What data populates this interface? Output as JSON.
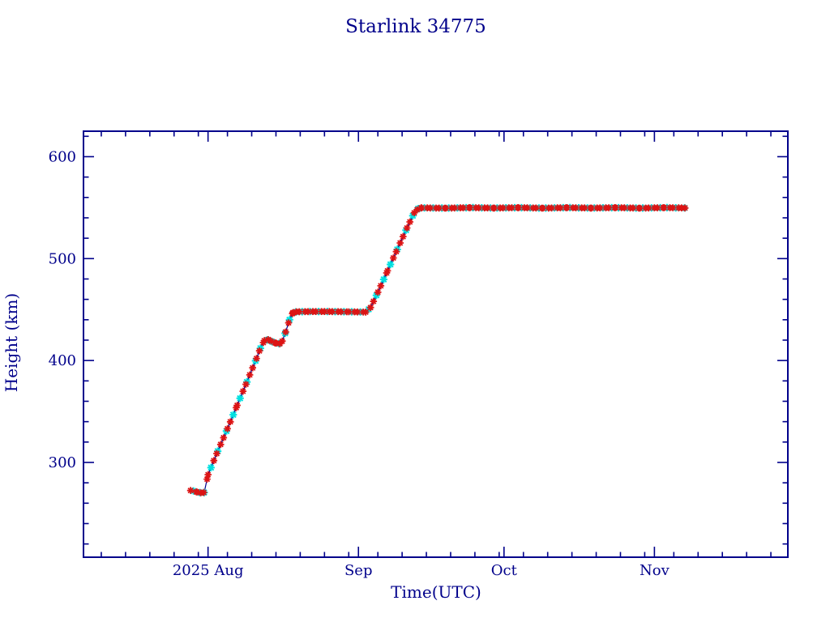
{
  "page": {
    "background": "#ffffff"
  },
  "chart_data": {
    "type": "line",
    "title": "Starlink 34775",
    "xlabel": "Time(UTC)",
    "ylabel": "Height (km)",
    "colors": {
      "axis": "#00008b",
      "text": "#00008b",
      "connector_line": "#00008b",
      "marker_primary": "#dc1414",
      "marker_secondary": "#00e0e0"
    },
    "legend": "none",
    "grid": "off",
    "x_axis": {
      "unit": "days since 2025-07-01",
      "range": [
        5.33,
        150.5
      ],
      "major_ticks": [
        {
          "label": "2025 Aug",
          "day": 31
        },
        {
          "label": "Sep",
          "day": 62
        },
        {
          "label": "Oct",
          "day": 92
        },
        {
          "label": "Nov",
          "day": 123
        }
      ],
      "minor_tick_days": [
        9,
        14,
        19,
        24,
        29,
        35,
        40,
        45,
        50,
        55,
        60,
        66,
        71,
        76,
        81,
        86,
        91,
        96,
        101,
        106,
        111,
        116,
        121,
        127,
        132,
        137,
        142,
        147
      ]
    },
    "y_axis": {
      "unit": "km",
      "range": [
        207,
        625
      ],
      "major_ticks": [
        300,
        400,
        500,
        600
      ],
      "minor_ticks": [
        220,
        240,
        260,
        280,
        320,
        340,
        360,
        380,
        420,
        440,
        460,
        480,
        520,
        540,
        560,
        580,
        620
      ]
    },
    "series": [
      {
        "name": "satellite-height",
        "marker": "asterisk",
        "points": [
          [
            27.4,
            272.5
          ],
          [
            28.0,
            272.0
          ],
          [
            28.7,
            271.0
          ],
          [
            29.5,
            270.2
          ],
          [
            30.2,
            270.5
          ],
          [
            31.0,
            288.0
          ],
          [
            33.0,
            311.0
          ],
          [
            35.0,
            333.0
          ],
          [
            37.0,
            356.0
          ],
          [
            39.0,
            379.0
          ],
          [
            41.0,
            402.0
          ],
          [
            41.8,
            412.0
          ],
          [
            42.6,
            419.5
          ],
          [
            43.4,
            420.5
          ],
          [
            44.2,
            418.5
          ],
          [
            45.0,
            417.0
          ],
          [
            45.8,
            416.5
          ],
          [
            46.3,
            419.0
          ],
          [
            47.0,
            428.0
          ],
          [
            47.8,
            440.0
          ],
          [
            48.5,
            447.0
          ],
          [
            49.2,
            447.8
          ],
          [
            52.0,
            448.0
          ],
          [
            56.0,
            448.0
          ],
          [
            60.0,
            447.8
          ],
          [
            63.5,
            447.5
          ],
          [
            64.5,
            452.0
          ],
          [
            66.0,
            467.0
          ],
          [
            68.0,
            488.0
          ],
          [
            70.0,
            509.0
          ],
          [
            72.0,
            530.0
          ],
          [
            73.5,
            545.0
          ],
          [
            74.3,
            549.0
          ],
          [
            75.0,
            549.8
          ],
          [
            80.0,
            549.5
          ],
          [
            85.0,
            550.0
          ],
          [
            90.0,
            549.6
          ],
          [
            95.0,
            550.0
          ],
          [
            100.0,
            549.5
          ],
          [
            105.0,
            550.0
          ],
          [
            110.0,
            549.6
          ],
          [
            115.0,
            550.0
          ],
          [
            120.0,
            549.5
          ],
          [
            125.0,
            550.0
          ],
          [
            129.3,
            549.7
          ]
        ]
      }
    ],
    "marker_step_days": 0.6,
    "secondary_marker_every": 3
  }
}
